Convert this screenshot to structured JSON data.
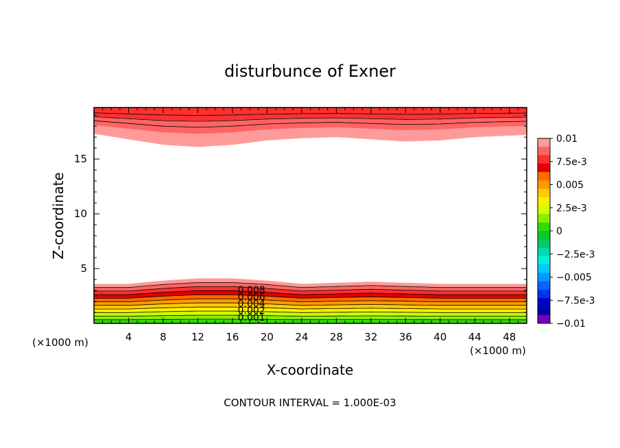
{
  "chart_data": {
    "type": "heatmap",
    "title": "disturbunce of Exner",
    "xlabel": "X-coordinate",
    "ylabel": "Z-coordinate",
    "x_unit_left": "(×1000 m)",
    "x_unit_right": "(×1000 m)",
    "footer": "CONTOUR INTERVAL = 1.000E-03",
    "xlim": [
      0,
      50
    ],
    "ylim": [
      0,
      19.7
    ],
    "x_ticks": [
      4,
      8,
      12,
      16,
      20,
      24,
      28,
      32,
      36,
      40,
      44,
      48
    ],
    "y_ticks": [
      5,
      10,
      15
    ],
    "colorbar": {
      "range": [
        -0.01,
        0.01
      ],
      "tick_labels": [
        "0.01",
        "7.5e-3",
        "0.005",
        "2.5e-3",
        "0",
        "−2.5e-3",
        "−0.005",
        "−7.5e-3",
        "−0.01"
      ],
      "colors": [
        "#ff9a9a",
        "#ff6464",
        "#ff3030",
        "#e00000",
        "#ff6a00",
        "#ff9a00",
        "#ffcc00",
        "#ffee00",
        "#ccff00",
        "#88ee00",
        "#33dd00",
        "#00cc33",
        "#00cc66",
        "#00ddaa",
        "#00eedd",
        "#00ccff",
        "#0099ff",
        "#0066ff",
        "#0033ee",
        "#0000cc",
        "#0000aa",
        "#7700bb"
      ]
    },
    "contour_interval": 0.001,
    "contour_labels": [
      "0.008",
      "0.006",
      "0.004",
      "0.002",
      "0.001"
    ],
    "fields": {
      "bottom_band": {
        "z_top_values": [
          3.6,
          3.6,
          3.9,
          4.1,
          4.1,
          3.9,
          3.6,
          3.7,
          3.8,
          3.7,
          3.6,
          3.6,
          3.6
        ],
        "x_values": [
          0,
          4,
          8,
          12,
          16,
          20,
          24,
          28,
          32,
          36,
          40,
          44,
          50
        ]
      },
      "top_band": {
        "z_bottom_values": [
          17.3,
          16.8,
          16.3,
          16.1,
          16.3,
          16.7,
          16.9,
          17.0,
          16.8,
          16.6,
          16.7,
          17.0,
          17.2
        ],
        "x_values": [
          0,
          4,
          8,
          12,
          16,
          20,
          24,
          28,
          32,
          36,
          40,
          44,
          50
        ]
      }
    }
  }
}
